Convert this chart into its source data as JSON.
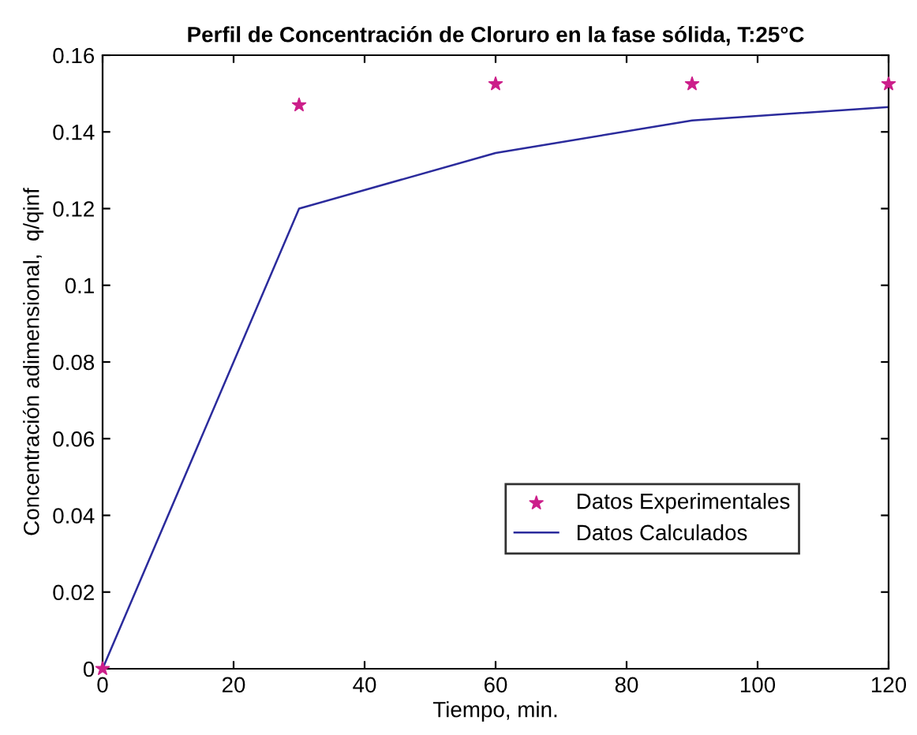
{
  "chart_data": {
    "type": "line",
    "title": "Perfil de Concentración de Cloruro en la fase sólida, T:25°C",
    "xlabel": "Tiempo, min.",
    "ylabel": "Concentración adimensional,  q/qinf",
    "series": [
      {
        "name": "Datos Experimentales",
        "type": "scatter",
        "marker": "star",
        "color": "#cc1f8a",
        "x": [
          0,
          30,
          60,
          90,
          120
        ],
        "values": [
          0,
          0.147,
          0.1525,
          0.1525,
          0.1525
        ]
      },
      {
        "name": "Datos Calculados",
        "marker": "none",
        "line_style": "solid",
        "color": "#2b2b9c",
        "x": [
          0,
          30,
          60,
          90,
          120
        ],
        "values": [
          0,
          0.12,
          0.1345,
          0.143,
          0.1465
        ]
      }
    ],
    "xlim": [
      0,
      120
    ],
    "xticks": [
      0,
      20,
      40,
      60,
      80,
      100,
      120
    ],
    "ylim": [
      0,
      0.16
    ],
    "yticks": [
      0,
      0.02,
      0.04,
      0.06,
      0.08,
      0.1,
      0.12,
      0.14,
      0.16
    ],
    "grid": false,
    "legend": "bottom right"
  }
}
